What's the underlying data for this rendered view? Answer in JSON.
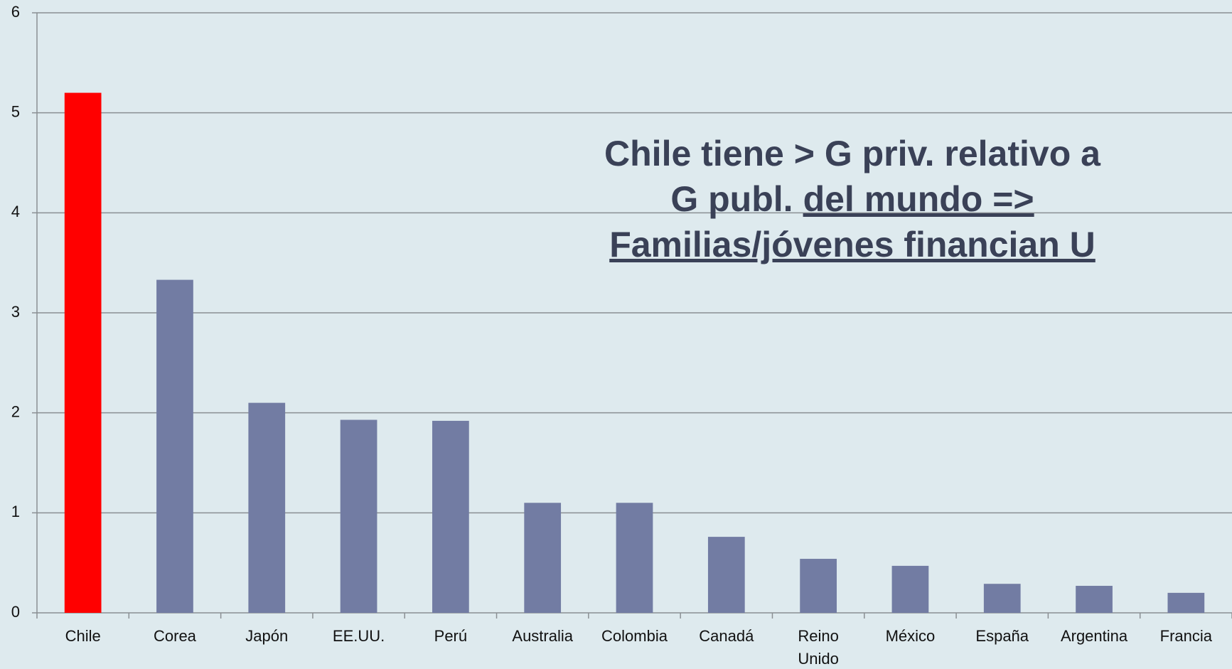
{
  "chart_data": {
    "type": "bar",
    "categories": [
      "Chile",
      "Corea",
      "Japón",
      "EE.UU.",
      "Perú",
      "Australia",
      "Colombia",
      "Canadá",
      "Reino Unido",
      "México",
      "España",
      "Argentina",
      "Francia"
    ],
    "values": [
      5.2,
      3.33,
      2.1,
      1.93,
      1.92,
      1.1,
      1.1,
      0.76,
      0.54,
      0.47,
      0.29,
      0.27,
      0.2
    ],
    "colors": [
      "#ff0000",
      "#727ca3",
      "#727ca3",
      "#727ca3",
      "#727ca3",
      "#727ca3",
      "#727ca3",
      "#727ca3",
      "#727ca3",
      "#727ca3",
      "#727ca3",
      "#727ca3",
      "#727ca3"
    ],
    "ylim": [
      0,
      6
    ],
    "yticks": [
      0,
      1,
      2,
      3,
      4,
      5,
      6
    ],
    "grid": true,
    "annotation": [
      [
        {
          "text": "Chile tiene > G priv. relativo a",
          "underline": false
        }
      ],
      [
        {
          "text": "G publ.",
          "underline": false
        },
        {
          "text": "del mundo =>",
          "underline": true
        }
      ],
      [
        {
          "text": "Familias/jóvenes financian U",
          "underline": true
        }
      ]
    ]
  }
}
